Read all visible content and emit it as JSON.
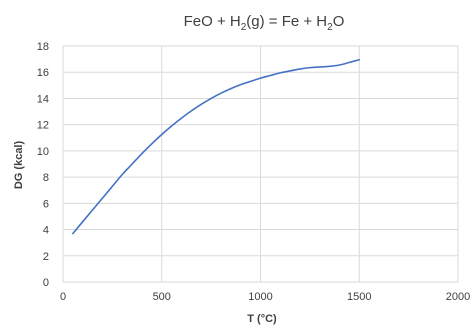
{
  "chart_data": {
    "type": "line",
    "title": {
      "parts": [
        {
          "text": "FeO + H",
          "sub": false
        },
        {
          "text": "2",
          "sub": true
        },
        {
          "text": "(g) = Fe + H",
          "sub": false
        },
        {
          "text": "2",
          "sub": true
        },
        {
          "text": "O",
          "sub": false
        }
      ]
    },
    "xlabel": "T (°C)",
    "ylabel": "DG (kcal)",
    "xlim": [
      0,
      2000
    ],
    "ylim": [
      0,
      18
    ],
    "xticks": [
      0,
      500,
      1000,
      1500,
      2000
    ],
    "yticks": [
      0,
      2,
      4,
      6,
      8,
      10,
      12,
      14,
      16,
      18
    ],
    "grid": true,
    "legend": "none",
    "colors": {
      "series": "#4472c4",
      "grid": "#d9d9d9",
      "text": "#404040"
    },
    "series": [
      {
        "x": [
          50,
          100,
          150,
          200,
          250,
          300,
          350,
          400,
          450,
          500,
          550,
          600,
          650,
          700,
          750,
          800,
          850,
          900,
          950,
          1000,
          1050,
          1100,
          1150,
          1200,
          1250,
          1300,
          1350,
          1400,
          1450,
          1500
        ],
        "values": [
          3.7,
          4.6,
          5.5,
          6.4,
          7.3,
          8.2,
          9.0,
          9.8,
          10.55,
          11.25,
          11.9,
          12.5,
          13.05,
          13.55,
          14.0,
          14.4,
          14.75,
          15.05,
          15.3,
          15.55,
          15.75,
          15.95,
          16.1,
          16.25,
          16.35,
          16.4,
          16.45,
          16.55,
          16.75,
          16.95
        ]
      }
    ]
  }
}
